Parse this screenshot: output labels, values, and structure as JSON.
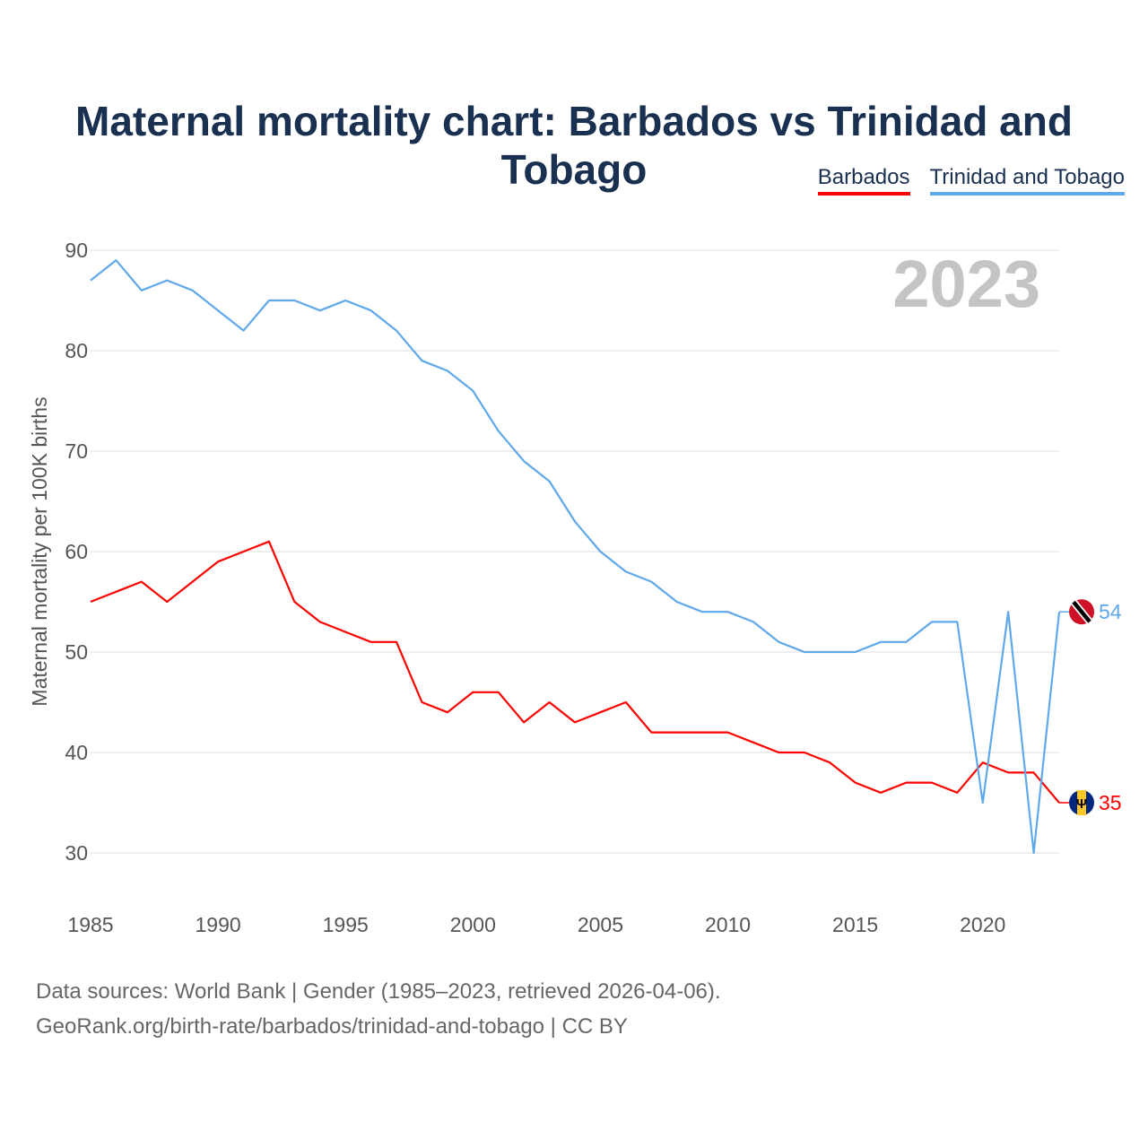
{
  "title": "Maternal mortality chart: Barbados vs Trinidad and Tobago",
  "legend": [
    {
      "label": "Barbados",
      "color": "#ff0000"
    },
    {
      "label": "Trinidad and Tobago",
      "color": "#5fa8ea"
    }
  ],
  "footer": {
    "line1": "Data sources: World Bank | Gender (1985–2023, retrieved 2026-04-06).",
    "line2": "GeoRank.org/birth-rate/barbados/trinidad-and-tobago | CC BY"
  },
  "chart_data": {
    "type": "line",
    "title": "Maternal mortality chart: Barbados vs Trinidad and Tobago",
    "ylabel": "Maternal mortality per 100K births",
    "xlabel": "",
    "year_watermark": "2023",
    "xlim": [
      1985,
      2023
    ],
    "ylim": [
      30,
      90
    ],
    "xticks": [
      1985,
      1990,
      1995,
      2000,
      2005,
      2010,
      2015,
      2020
    ],
    "yticks": [
      30,
      40,
      50,
      60,
      70,
      80,
      90
    ],
    "grid": true,
    "legend_position": "top-right",
    "x": [
      1985,
      1986,
      1987,
      1988,
      1989,
      1990,
      1991,
      1992,
      1993,
      1994,
      1995,
      1996,
      1997,
      1998,
      1999,
      2000,
      2001,
      2002,
      2003,
      2004,
      2005,
      2006,
      2007,
      2008,
      2009,
      2010,
      2011,
      2012,
      2013,
      2014,
      2015,
      2016,
      2017,
      2018,
      2019,
      2020,
      2021,
      2022,
      2023
    ],
    "series": [
      {
        "name": "Barbados",
        "color": "#ff0000",
        "end_label": "35",
        "values": [
          55,
          56,
          57,
          55,
          57,
          59,
          60,
          61,
          55,
          53,
          52,
          51,
          51,
          45,
          44,
          46,
          46,
          43,
          45,
          43,
          44,
          45,
          42,
          42,
          42,
          42,
          41,
          40,
          40,
          39,
          37,
          36,
          37,
          37,
          36,
          39,
          38,
          38,
          35
        ]
      },
      {
        "name": "Trinidad and Tobago",
        "color": "#5fa8ea",
        "end_label": "54",
        "values": [
          87,
          89,
          86,
          87,
          86,
          84,
          82,
          85,
          85,
          84,
          85,
          84,
          82,
          79,
          78,
          76,
          72,
          69,
          67,
          63,
          60,
          58,
          57,
          55,
          54,
          54,
          53,
          51,
          50,
          50,
          50,
          51,
          51,
          53,
          53,
          35,
          54,
          30,
          54
        ]
      }
    ]
  }
}
